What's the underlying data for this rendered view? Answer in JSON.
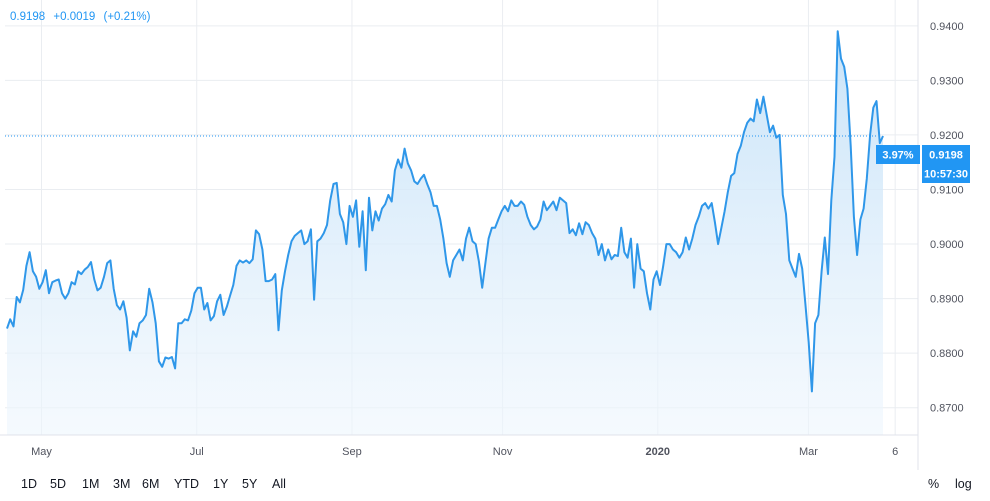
{
  "header": {
    "price": "0.9198",
    "change": "+0.0019",
    "change_pct": "(+0.21%)"
  },
  "badges": {
    "pct": "3.97%",
    "price": "0.9198",
    "countdown": "10:57:30"
  },
  "toolbar": {
    "timeframes": [
      "1D",
      "5D",
      "1M",
      "3M",
      "6M",
      "YTD",
      "1Y",
      "5Y",
      "All"
    ],
    "percent_label": "%",
    "log_label": "log"
  },
  "colors": {
    "line": "#2f97e9",
    "area_top": "#c6e2f8",
    "area_bottom": "#eef6fd",
    "grid": "#eaedf1",
    "accent": "#2196f3",
    "last_price_line": "#2196f3"
  },
  "chart_data": {
    "type": "area",
    "title": "",
    "xlabel": "",
    "ylabel": "",
    "ylim": [
      0.865,
      0.944
    ],
    "y_ticks": [
      "0.8700",
      "0.8800",
      "0.8900",
      "0.9000",
      "0.9100",
      "0.9200",
      "0.9300",
      "0.9400"
    ],
    "x_ticks": [
      {
        "label": "May",
        "t": 0.04,
        "bold": false
      },
      {
        "label": "Jul",
        "t": 0.21,
        "bold": false
      },
      {
        "label": "Sep",
        "t": 0.38,
        "bold": false
      },
      {
        "label": "Nov",
        "t": 0.545,
        "bold": false
      },
      {
        "label": "2020",
        "t": 0.715,
        "bold": true
      },
      {
        "label": "Mar",
        "t": 0.88,
        "bold": false
      },
      {
        "label": "6",
        "t": 0.975,
        "bold": false
      }
    ],
    "grid": true,
    "last_value": 0.9198,
    "series": [
      {
        "values": [
          0.8845,
          0.8862,
          0.8849,
          0.8903,
          0.8893,
          0.8916,
          0.896,
          0.8985,
          0.895,
          0.894,
          0.8918,
          0.893,
          0.8952,
          0.891,
          0.893,
          0.8933,
          0.8935,
          0.891,
          0.89,
          0.891,
          0.893,
          0.8926,
          0.895,
          0.8945,
          0.8953,
          0.8958,
          0.8967,
          0.8935,
          0.8915,
          0.892,
          0.894,
          0.8965,
          0.897,
          0.8918,
          0.8888,
          0.888,
          0.8895,
          0.8865,
          0.8805,
          0.884,
          0.883,
          0.8855,
          0.886,
          0.887,
          0.8918,
          0.8893,
          0.8855,
          0.8785,
          0.8775,
          0.8792,
          0.879,
          0.8793,
          0.8772,
          0.8855,
          0.8855,
          0.8862,
          0.886,
          0.8878,
          0.891,
          0.892,
          0.892,
          0.888,
          0.8892,
          0.886,
          0.8868,
          0.8895,
          0.8907,
          0.887,
          0.8885,
          0.8905,
          0.8925,
          0.896,
          0.897,
          0.8966,
          0.897,
          0.8965,
          0.8972,
          0.9025,
          0.9018,
          0.899,
          0.8932,
          0.8932,
          0.8935,
          0.8945,
          0.8842,
          0.8915,
          0.895,
          0.898,
          0.9005,
          0.9015,
          0.902,
          0.9025,
          0.9,
          0.9005,
          0.9027,
          0.8898,
          0.9005,
          0.901,
          0.902,
          0.9035,
          0.908,
          0.911,
          0.9112,
          0.9055,
          0.904,
          0.9,
          0.907,
          0.905,
          0.908,
          0.8995,
          0.906,
          0.8952,
          0.9085,
          0.9025,
          0.906,
          0.9043,
          0.9065,
          0.9073,
          0.909,
          0.9078,
          0.9135,
          0.9155,
          0.914,
          0.9175,
          0.9148,
          0.9135,
          0.9115,
          0.911,
          0.912,
          0.9127,
          0.911,
          0.9095,
          0.907,
          0.907,
          0.9045,
          0.901,
          0.8965,
          0.894,
          0.897,
          0.898,
          0.899,
          0.897,
          0.901,
          0.903,
          0.9005,
          0.9,
          0.8968,
          0.892,
          0.8965,
          0.901,
          0.903,
          0.903,
          0.9045,
          0.906,
          0.907,
          0.906,
          0.908,
          0.907,
          0.907,
          0.9078,
          0.9072,
          0.905,
          0.9035,
          0.9027,
          0.9032,
          0.9045,
          0.9078,
          0.9062,
          0.907,
          0.9078,
          0.9062,
          0.9085,
          0.908,
          0.9075,
          0.902,
          0.9027,
          0.9016,
          0.9038,
          0.9018,
          0.904,
          0.9035,
          0.902,
          0.901,
          0.898,
          0.9,
          0.897,
          0.899,
          0.8972,
          0.898,
          0.8978,
          0.903,
          0.8985,
          0.8975,
          0.901,
          0.892,
          0.9,
          0.8955,
          0.895,
          0.891,
          0.888,
          0.8935,
          0.895,
          0.8925,
          0.896,
          0.9,
          0.9,
          0.899,
          0.8985,
          0.8975,
          0.8985,
          0.9012,
          0.899,
          0.901,
          0.9035,
          0.905,
          0.907,
          0.9075,
          0.9065,
          0.9075,
          0.904,
          0.9,
          0.903,
          0.906,
          0.9095,
          0.9125,
          0.913,
          0.9165,
          0.918,
          0.9205,
          0.9222,
          0.923,
          0.9225,
          0.9265,
          0.924,
          0.927,
          0.9238,
          0.9205,
          0.9217,
          0.9195,
          0.92,
          0.909,
          0.9055,
          0.897,
          0.8955,
          0.894,
          0.8982,
          0.8955,
          0.889,
          0.882,
          0.873,
          0.8855,
          0.887,
          0.895,
          0.9012,
          0.8945,
          0.908,
          0.916,
          0.939,
          0.934,
          0.9325,
          0.9285,
          0.918,
          0.905,
          0.898,
          0.9045,
          0.9065,
          0.912,
          0.92,
          0.925,
          0.9262,
          0.9185,
          0.9198
        ]
      }
    ]
  }
}
